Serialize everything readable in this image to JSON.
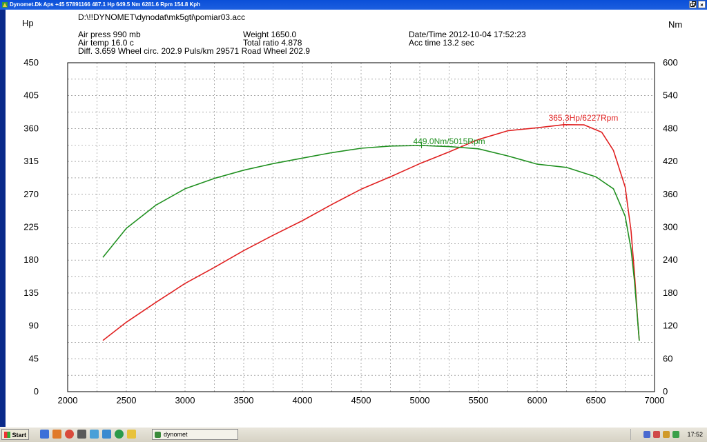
{
  "window": {
    "title": "Dynomet.Dk Aps +45 57891166  487.1 Hp 649.5 Nm 6281.6 Rpm 154.8 Kph",
    "controls": {
      "close": "×"
    }
  },
  "header": {
    "file_path": "D:\\!!DYNOMET\\dynodat\\mk5gti\\pomiar03.acc",
    "air_press": "Air press   990 mb",
    "air_temp": "Air temp   16.0 c",
    "diff": "Diff.    3.659   Wheel circ. 202.9   Puls/km    29571   Road Wheel 202.9",
    "weight": "Weight   1650.0",
    "total_ratio": "Total ratio 4.878",
    "datetime": "Date/Time  2012-10-04 17:52:23",
    "acc_time": "Acc time   13.2 sec"
  },
  "chart_data": {
    "type": "line",
    "xlabel": "",
    "ylabel_left": "Hp",
    "ylabel_right": "Nm",
    "xlim": [
      2000,
      7000
    ],
    "ylim_left": [
      0,
      450
    ],
    "ylim_right": [
      0,
      600
    ],
    "x_ticks": [
      "2000",
      "2500",
      "3000",
      "3500",
      "4000",
      "4500",
      "5000",
      "5500",
      "6000",
      "6500",
      "7000"
    ],
    "y_ticks_left": [
      "0",
      "45",
      "90",
      "135",
      "180",
      "225",
      "270",
      "315",
      "360",
      "405",
      "450"
    ],
    "y_ticks_right": [
      "0",
      "60",
      "120",
      "180",
      "240",
      "300",
      "360",
      "420",
      "480",
      "540",
      "600"
    ],
    "grid": true,
    "series": [
      {
        "axis": "left",
        "color": "#e02020",
        "points": [
          [
            2300,
            70
          ],
          [
            2500,
            95
          ],
          [
            2750,
            122
          ],
          [
            3000,
            148
          ],
          [
            3250,
            170
          ],
          [
            3500,
            193
          ],
          [
            3750,
            214
          ],
          [
            4000,
            234
          ],
          [
            4250,
            256
          ],
          [
            4500,
            277
          ],
          [
            4750,
            294
          ],
          [
            5000,
            312
          ],
          [
            5250,
            328
          ],
          [
            5500,
            345
          ],
          [
            5750,
            357
          ],
          [
            6000,
            361
          ],
          [
            6227,
            365.3
          ],
          [
            6400,
            365
          ],
          [
            6550,
            355
          ],
          [
            6650,
            330
          ],
          [
            6750,
            280
          ],
          [
            6800,
            220
          ],
          [
            6830,
            160
          ],
          [
            6860,
            90
          ],
          [
            6870,
            70
          ]
        ]
      },
      {
        "axis": "right",
        "color": "#209020",
        "points": [
          [
            2300,
            245
          ],
          [
            2500,
            298
          ],
          [
            2750,
            340
          ],
          [
            3000,
            370
          ],
          [
            3250,
            389
          ],
          [
            3500,
            404
          ],
          [
            3750,
            416
          ],
          [
            4000,
            426
          ],
          [
            4250,
            436
          ],
          [
            4500,
            444
          ],
          [
            4750,
            448
          ],
          [
            5015,
            449
          ],
          [
            5250,
            447
          ],
          [
            5500,
            443
          ],
          [
            5750,
            430
          ],
          [
            6000,
            415
          ],
          [
            6250,
            409
          ],
          [
            6500,
            392
          ],
          [
            6650,
            370
          ],
          [
            6750,
            320
          ],
          [
            6800,
            260
          ],
          [
            6830,
            200
          ],
          [
            6860,
            120
          ],
          [
            6870,
            93
          ]
        ]
      }
    ],
    "annotations": [
      "365.3Hp/6227Rpm",
      "449.0Nm/5015Rpm"
    ]
  },
  "taskbar": {
    "start_label": "Start",
    "task_label": "dynomet",
    "clock": "17:52"
  }
}
